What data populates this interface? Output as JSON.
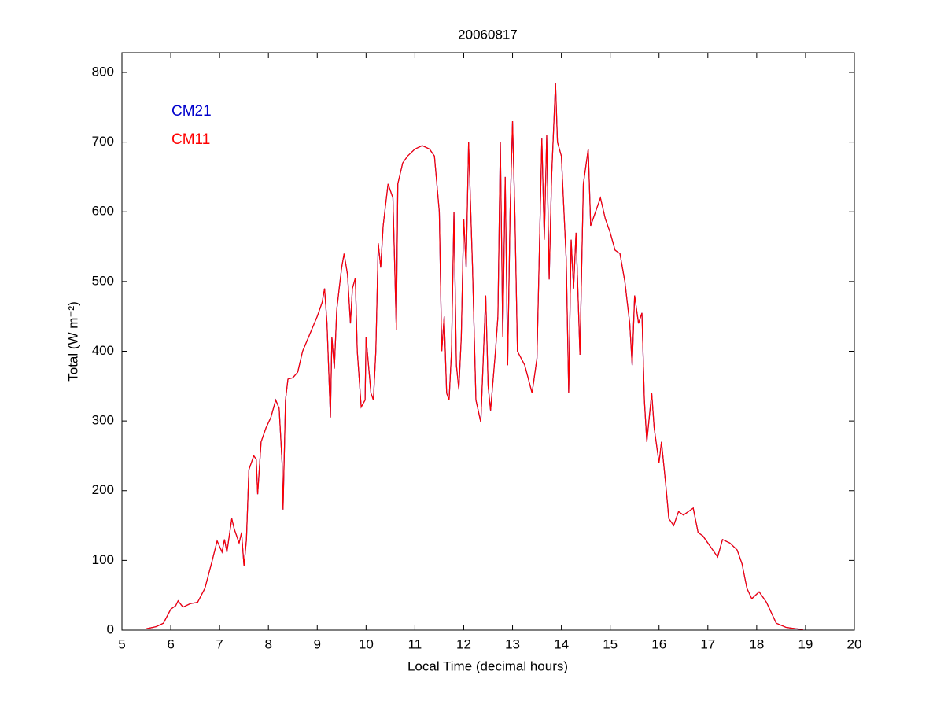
{
  "chart_data": {
    "type": "line",
    "title": "20060817",
    "xlabel": "Local Time (decimal hours)",
    "ylabel": "Total (W m⁻²)",
    "x": [
      5.5,
      5.7,
      5.85,
      6.0,
      6.1,
      6.15,
      6.25,
      6.4,
      6.55,
      6.7,
      6.85,
      6.95,
      7.05,
      7.1,
      7.15,
      7.25,
      7.3,
      7.4,
      7.45,
      7.5,
      7.55,
      7.6,
      7.7,
      7.75,
      7.78,
      7.85,
      7.95,
      8.05,
      8.15,
      8.22,
      8.28,
      8.3,
      8.35,
      8.4,
      8.5,
      8.6,
      8.7,
      8.85,
      9.0,
      9.1,
      9.15,
      9.2,
      9.27,
      9.3,
      9.35,
      9.4,
      9.5,
      9.55,
      9.62,
      9.68,
      9.72,
      9.78,
      9.82,
      9.9,
      9.98,
      10.0,
      10.05,
      10.1,
      10.15,
      10.2,
      10.25,
      10.3,
      10.35,
      10.45,
      10.55,
      10.62,
      10.65,
      10.75,
      10.85,
      11.0,
      11.15,
      11.3,
      11.4,
      11.5,
      11.55,
      11.6,
      11.65,
      11.7,
      11.75,
      11.8,
      11.85,
      11.9,
      11.95,
      12.0,
      12.05,
      12.1,
      12.18,
      12.25,
      12.35,
      12.45,
      12.5,
      12.55,
      12.65,
      12.7,
      12.75,
      12.8,
      12.85,
      12.9,
      12.95,
      13.0,
      13.05,
      13.1,
      13.25,
      13.4,
      13.5,
      13.6,
      13.65,
      13.7,
      13.75,
      13.8,
      13.88,
      13.92,
      14.0,
      14.1,
      14.15,
      14.2,
      14.25,
      14.3,
      14.38,
      14.45,
      14.55,
      14.6,
      14.7,
      14.8,
      14.9,
      15.0,
      15.1,
      15.2,
      15.3,
      15.4,
      15.45,
      15.5,
      15.58,
      15.65,
      15.7,
      15.75,
      15.85,
      15.9,
      16.0,
      16.05,
      16.15,
      16.2,
      16.3,
      16.4,
      16.5,
      16.6,
      16.7,
      16.8,
      16.9,
      17.0,
      17.1,
      17.2,
      17.3,
      17.45,
      17.6,
      17.7,
      17.8,
      17.9,
      18.05,
      18.2,
      18.4,
      18.6,
      18.8,
      18.95
    ],
    "series": [
      {
        "name": "CM21",
        "color": "#0000cc",
        "values": [
          2,
          5,
          10,
          30,
          35,
          42,
          33,
          38,
          40,
          60,
          100,
          128,
          112,
          130,
          112,
          160,
          145,
          125,
          140,
          92,
          130,
          230,
          250,
          245,
          195,
          270,
          290,
          305,
          330,
          318,
          240,
          173,
          330,
          360,
          362,
          370,
          400,
          425,
          450,
          470,
          490,
          440,
          305,
          420,
          375,
          460,
          520,
          540,
          510,
          440,
          490,
          505,
          400,
          320,
          330,
          420,
          380,
          340,
          330,
          400,
          555,
          520,
          580,
          640,
          620,
          430,
          640,
          670,
          680,
          690,
          695,
          690,
          680,
          600,
          400,
          450,
          340,
          330,
          400,
          600,
          380,
          345,
          420,
          590,
          520,
          700,
          520,
          330,
          298,
          480,
          350,
          315,
          400,
          450,
          700,
          420,
          650,
          380,
          600,
          730,
          590,
          400,
          380,
          340,
          390,
          705,
          560,
          710,
          503,
          650,
          785,
          700,
          680,
          530,
          340,
          560,
          490,
          570,
          395,
          640,
          690,
          580,
          600,
          620,
          590,
          570,
          545,
          540,
          500,
          440,
          380,
          480,
          440,
          455,
          330,
          270,
          340,
          290,
          240,
          270,
          200,
          160,
          150,
          170,
          165,
          170,
          175,
          140,
          135,
          125,
          115,
          105,
          130,
          125,
          115,
          95,
          60,
          45,
          55,
          40,
          10,
          4,
          2,
          1
        ]
      },
      {
        "name": "CM11",
        "color": "#ff0000",
        "values": [
          2,
          5,
          10,
          30,
          35,
          42,
          33,
          38,
          40,
          60,
          100,
          128,
          112,
          130,
          112,
          160,
          145,
          125,
          140,
          92,
          130,
          230,
          250,
          245,
          195,
          270,
          290,
          305,
          330,
          318,
          240,
          173,
          330,
          360,
          362,
          370,
          400,
          425,
          450,
          470,
          490,
          440,
          305,
          420,
          375,
          460,
          520,
          540,
          510,
          440,
          490,
          505,
          400,
          320,
          330,
          420,
          380,
          340,
          330,
          400,
          555,
          520,
          580,
          640,
          620,
          430,
          640,
          670,
          680,
          690,
          695,
          690,
          680,
          600,
          400,
          450,
          340,
          330,
          400,
          600,
          380,
          345,
          420,
          590,
          520,
          700,
          520,
          330,
          298,
          480,
          350,
          315,
          400,
          450,
          700,
          420,
          650,
          380,
          600,
          730,
          590,
          400,
          380,
          340,
          390,
          705,
          560,
          710,
          503,
          650,
          785,
          700,
          680,
          530,
          340,
          560,
          490,
          570,
          395,
          640,
          690,
          580,
          600,
          620,
          590,
          570,
          545,
          540,
          500,
          440,
          380,
          480,
          440,
          455,
          330,
          270,
          340,
          290,
          240,
          270,
          200,
          160,
          150,
          170,
          165,
          170,
          175,
          140,
          135,
          125,
          115,
          105,
          130,
          125,
          115,
          95,
          60,
          45,
          55,
          40,
          10,
          4,
          2,
          1
        ]
      }
    ],
    "xlim": [
      5,
      20
    ],
    "xticks": [
      5,
      6,
      7,
      8,
      9,
      10,
      11,
      12,
      13,
      14,
      15,
      16,
      17,
      18,
      19,
      20
    ],
    "ylim": [
      0,
      800
    ],
    "yticks": [
      0,
      100,
      200,
      300,
      400,
      500,
      600,
      700,
      800
    ],
    "grid": false,
    "legend": "upper left"
  }
}
